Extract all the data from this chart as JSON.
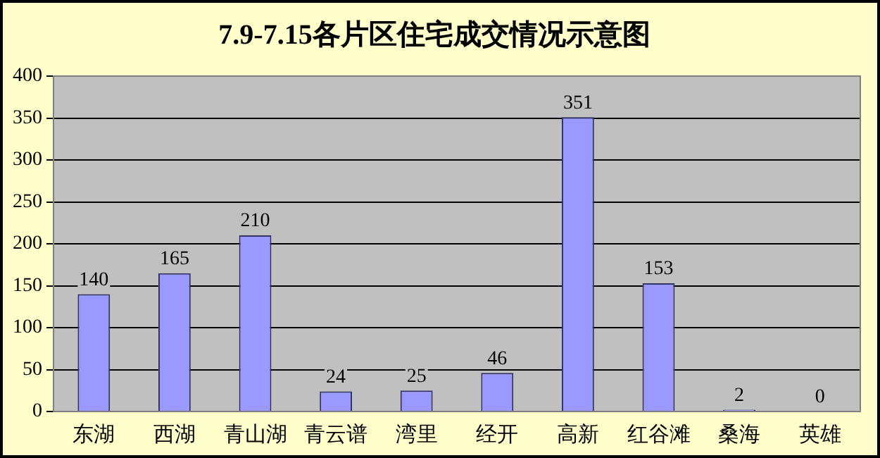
{
  "chart_data": {
    "type": "bar",
    "title": "7.9-7.15各片区住宅成交情况示意图",
    "categories": [
      "东湖",
      "西湖",
      "青山湖",
      "青云谱",
      "湾里",
      "经开",
      "高新",
      "红谷滩",
      "桑海",
      "英雄"
    ],
    "values": [
      140,
      165,
      210,
      24,
      25,
      46,
      351,
      153,
      2,
      0
    ],
    "color": "#9999ff",
    "ylim": [
      0,
      400
    ],
    "yticks": [
      0,
      50,
      100,
      150,
      200,
      250,
      300,
      350,
      400
    ],
    "grid": "y",
    "data_labels": true,
    "legend": false
  }
}
